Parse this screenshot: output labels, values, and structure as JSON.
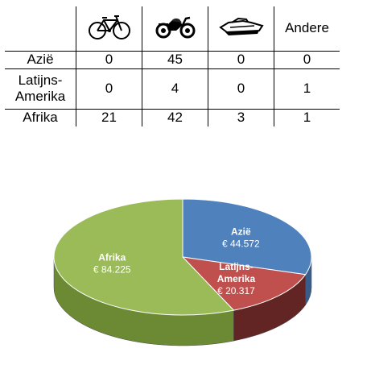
{
  "table": {
    "columns": [
      {
        "icon": "bicycle-icon"
      },
      {
        "icon": "motorcycle-icon"
      },
      {
        "icon": "boat-icon"
      },
      {
        "label": "Andere"
      }
    ],
    "rows": [
      {
        "label": "Azië",
        "values": [
          "0",
          "45",
          "0",
          "0"
        ]
      },
      {
        "label": "Latijns-Amerika",
        "label_lines": [
          "Latijns-",
          "Amerika"
        ],
        "values": [
          "0",
          "4",
          "0",
          "1"
        ]
      },
      {
        "label": "Afrika",
        "values": [
          "21",
          "42",
          "3",
          "1"
        ]
      }
    ]
  },
  "chart_data": {
    "type": "pie",
    "style": "3d",
    "slices": [
      {
        "label": "Azië",
        "label_lines": [
          "Azië"
        ],
        "value_label": "€ 44.572",
        "value": 44572,
        "color": "#4F81BD",
        "side_color": "#385D8A"
      },
      {
        "label": "Latijns-Amerika",
        "label_lines": [
          "Latijns-",
          "Amerika"
        ],
        "value_label": "€ 20.317",
        "value": 20317,
        "color": "#C0504D",
        "side_color": "#632523"
      },
      {
        "label": "Afrika",
        "label_lines": [
          "Afrika"
        ],
        "value_label": "€ 84.225",
        "value": 84225,
        "color": "#9BBB59",
        "side_color": "#6B8A33"
      }
    ],
    "start_angle_deg": -90,
    "direction": "clockwise"
  }
}
